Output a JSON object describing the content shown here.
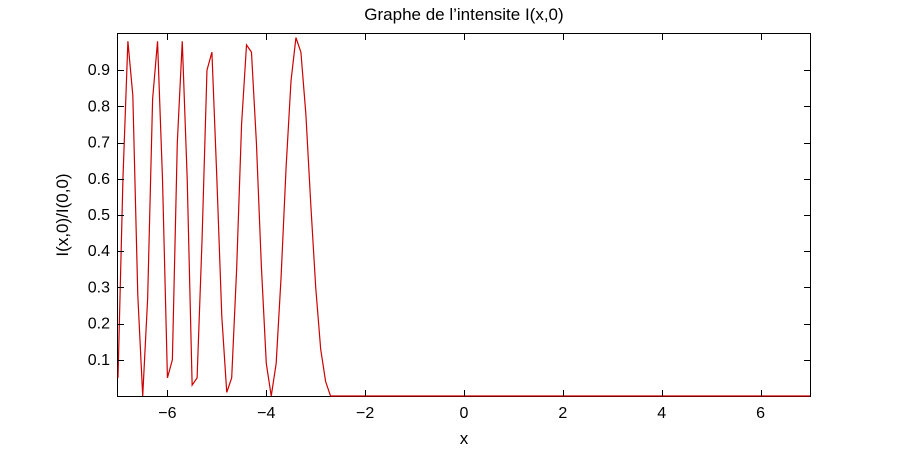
{
  "chart_data": {
    "type": "line",
    "title": "Graphe de l’intensite I(x,0)",
    "xlabel": "x",
    "ylabel": "I(x,0)/I(0,0)",
    "xlim": [
      -7,
      7
    ],
    "ylim": [
      0,
      1
    ],
    "x_ticks": [
      -6,
      -4,
      -2,
      0,
      2,
      4,
      6
    ],
    "x_tick_labels": [
      "−6",
      "−4",
      "−2",
      "0",
      "2",
      "4",
      "6"
    ],
    "y_ticks": [
      0.1,
      0.2,
      0.3,
      0.4,
      0.5,
      0.6,
      0.7,
      0.8,
      0.9
    ],
    "y_tick_labels": [
      "0.1",
      "0.2",
      "0.3",
      "0.4",
      "0.5",
      "0.6",
      "0.7",
      "0.8",
      "0.9"
    ],
    "grid": false,
    "legend": "none",
    "series": [
      {
        "color": "#cc0000",
        "x": [
          -7,
          -6.9,
          -6.8,
          -6.7,
          -6.6,
          -6.5,
          -6.4,
          -6.3,
          -6.2,
          -6.1,
          -6,
          -5.9,
          -5.8,
          -5.7,
          -5.6,
          -5.5,
          -5.4,
          -5.3,
          -5.2,
          -5.1,
          -5,
          -4.9,
          -4.8,
          -4.7,
          -4.6,
          -4.5,
          -4.4,
          -4.3,
          -4.2,
          -4.1,
          -4,
          -3.9,
          -3.8,
          -3.7,
          -3.6,
          -3.5,
          -3.4,
          -3.3,
          -3.2,
          -3.1,
          -3,
          -2.9,
          -2.8,
          -2.7,
          -2.6,
          -2.5,
          -2.4,
          -2.3,
          -2.2,
          -2.1,
          -2,
          -1.9,
          -1.8,
          -1.7,
          -1.6,
          -1.5,
          -1.4,
          -1.3,
          -1.2,
          -1.1,
          -1,
          -0.9,
          -0.8,
          -0.7,
          -0.6,
          -0.5,
          -0.4,
          -0.3,
          -0.2,
          -0.1,
          0,
          0.1,
          0.2,
          0.3,
          0.4,
          0.5,
          0.6,
          0.7,
          0.8,
          0.9,
          1,
          1.1,
          1.2,
          1.3,
          1.4,
          1.5,
          1.6,
          1.7,
          1.8,
          1.9,
          2,
          2.1,
          2.2,
          2.3,
          2.4,
          2.5,
          2.6,
          2.7,
          2.8,
          2.9,
          3,
          3.1,
          3.2,
          3.3,
          3.4,
          3.5,
          3.6,
          3.7,
          3.8,
          3.9,
          4,
          4.1,
          4.2,
          4.3,
          4.4,
          4.5,
          4.6,
          4.7,
          4.8,
          4.9,
          5,
          5.1,
          5.2,
          5.3,
          5.4,
          5.5,
          5.6,
          5.7,
          5.8,
          5.9,
          6,
          6.1,
          6.2,
          6.3,
          6.4,
          6.5,
          6.6,
          6.7,
          6.8,
          6.9,
          7
        ],
        "y": [
          0.05,
          0.6,
          0.98,
          0.83,
          0.28,
          0.0,
          0.27,
          0.82,
          0.98,
          0.6,
          0.05,
          0.1,
          0.7,
          0.98,
          0.6,
          0.03,
          0.05,
          0.43,
          0.9,
          0.95,
          0.6,
          0.22,
          0.01,
          0.05,
          0.35,
          0.75,
          0.97,
          0.95,
          0.7,
          0.36,
          0.09,
          0.0,
          0.09,
          0.33,
          0.63,
          0.87,
          0.99,
          0.95,
          0.78,
          0.53,
          0.3,
          0.13,
          0.04,
          0.0,
          0.0,
          0.0,
          0.0,
          0.0,
          0.0,
          0.0,
          0.0,
          0.0,
          0.0,
          0.0,
          0.0,
          0.0,
          0.0,
          0.0,
          0.0,
          0.0,
          0.0,
          0.0,
          0.0,
          0.0,
          0.0,
          0.0,
          0.0,
          0.0,
          0.0,
          0.0,
          0.0,
          0.0,
          0.0,
          0.0,
          0.0,
          0.0,
          0.0,
          0.0,
          0.0,
          0.0,
          0.0,
          0.0,
          0.0,
          0.0,
          0.0,
          0.0,
          0.0,
          0.0,
          0.0,
          0.0,
          0.0,
          0.0,
          0.0,
          0.0,
          0.0,
          0.0,
          0.0,
          0.0,
          0.0,
          0.0,
          0.0,
          0.0,
          0.0,
          0.0,
          0.0,
          0.0,
          0.0,
          0.0,
          0.0,
          0.0,
          0.0,
          0.0,
          0.0,
          0.0,
          0.0,
          0.0,
          0.0,
          0.0,
          0.0,
          0.0,
          0.0,
          0.0,
          0.0,
          0.0,
          0.0,
          0.0,
          0.0,
          0.0,
          0.0,
          0.0,
          0.0,
          0.0,
          0.0,
          0.0,
          0.0,
          0.0,
          0.0,
          0.0,
          0.0,
          0.0,
          0.0
        ]
      }
    ]
  }
}
